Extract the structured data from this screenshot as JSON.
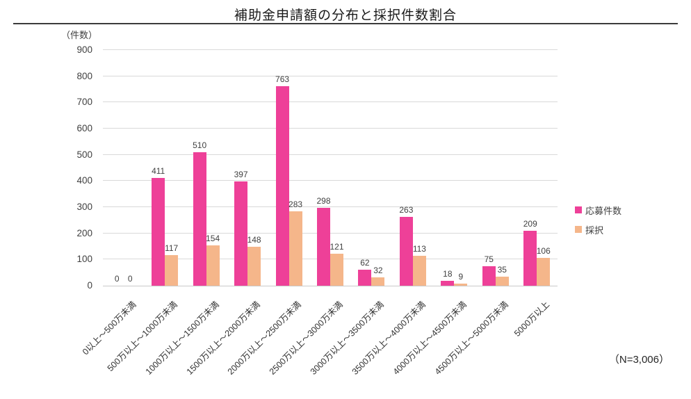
{
  "chart_data": {
    "type": "bar",
    "title": "補助金申請額の分布と採択件数割合",
    "ylabel": "（件数）",
    "annotation": "（N=3,006）",
    "ylim": [
      0,
      900
    ],
    "ytick_step": 100,
    "grid": true,
    "legend_position": "right",
    "categories": [
      "0以上～500万未満",
      "500万以上～1000万未満",
      "1000万以上～1500万未満",
      "1500万以上～2000万未満",
      "2000万以上～2500万未満",
      "2500万以上～3000万未満",
      "3000万以上～3500万未満",
      "3500万以上～4000万未満",
      "4000万以上～4500万未満",
      "4500万以上～5000万未満",
      "5000万以上"
    ],
    "series": [
      {
        "name": "応募件数",
        "color": "#EE4098",
        "values": [
          0,
          411,
          510,
          397,
          763,
          298,
          62,
          263,
          18,
          75,
          209
        ]
      },
      {
        "name": "採択",
        "color": "#F5B68A",
        "values": [
          0,
          117,
          154,
          148,
          283,
          121,
          32,
          113,
          9,
          35,
          106
        ]
      }
    ]
  },
  "style_colors": {
    "gridline": "#d9d9d9",
    "axis_line": "#c9c9c9",
    "title_rule": "#3b3b3b",
    "text": "#404040"
  }
}
